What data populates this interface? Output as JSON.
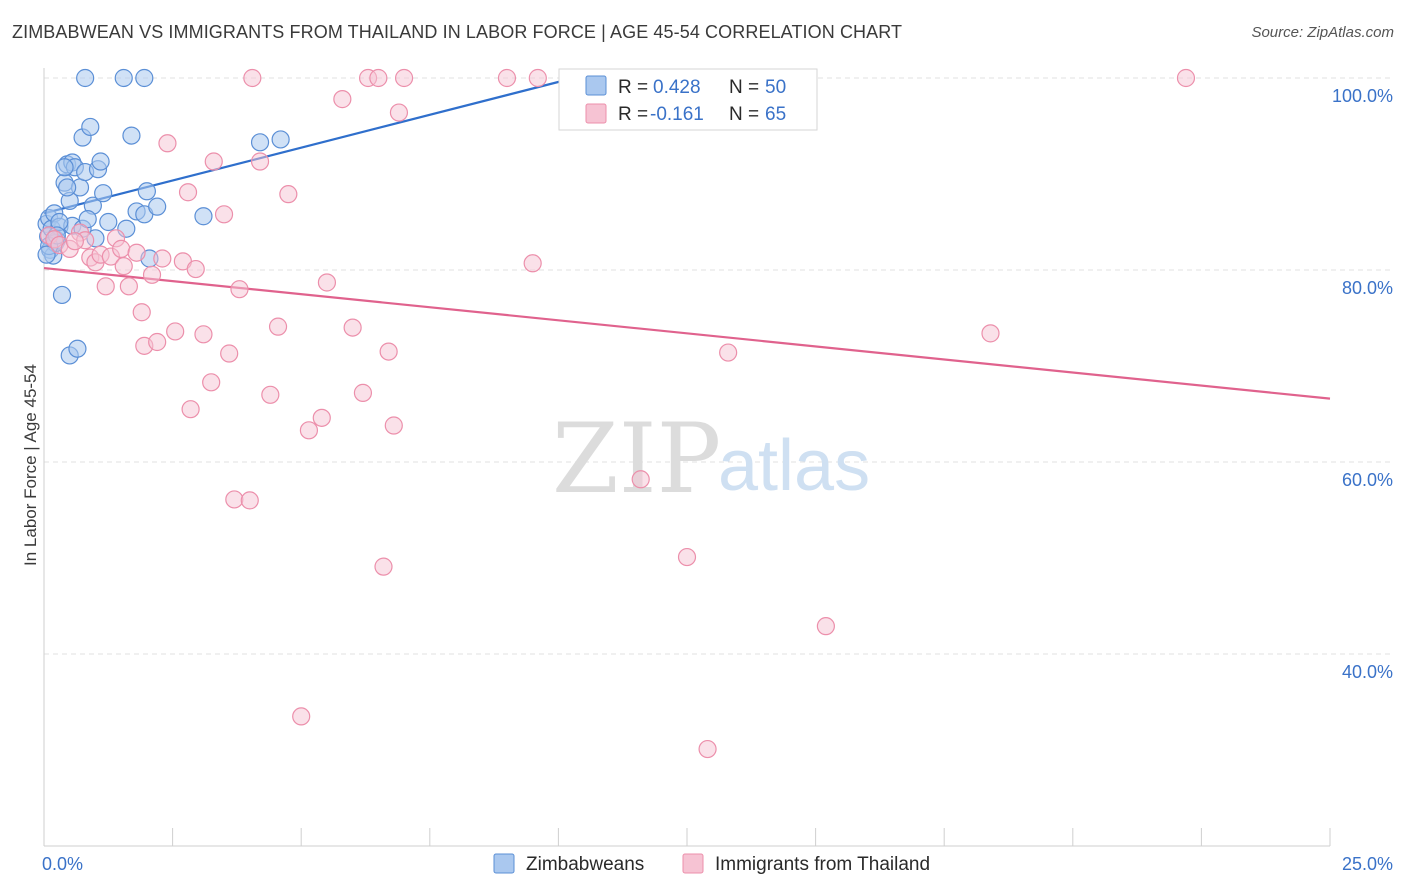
{
  "header": {
    "title": "ZIMBABWEAN VS IMMIGRANTS FROM THAILAND IN LABOR FORCE | AGE 45-54 CORRELATION CHART",
    "source": "Source: ZipAtlas.com"
  },
  "watermark": {
    "zip": "ZIP",
    "atlas": "atlas"
  },
  "colors": {
    "blue": "#5b8fd6",
    "blue_fill": "#aac8ef",
    "blue_line": "#2f6fcc",
    "pink": "#ec8fab",
    "pink_fill": "#f6c3d3",
    "pink_line": "#e0628d",
    "tick": "#3a72c8",
    "grid": "#e2e2e2"
  },
  "stats_box": {
    "rows": [
      {
        "r_label": "R = ",
        "r_value": "0.428",
        "n_label": "N = ",
        "n_value": "50"
      },
      {
        "r_label": "R = ",
        "r_value": "-0.161",
        "n_label": "N = ",
        "n_value": "65"
      }
    ]
  },
  "chart_data": {
    "type": "scatter",
    "title": "ZIMBABWEAN VS IMMIGRANTS FROM THAILAND IN LABOR FORCE | AGE 45-54 CORRELATION CHART",
    "xlabel": "",
    "ylabel": "In Labor Force | Age 45-54",
    "xlim": [
      0,
      25
    ],
    "ylim": [
      20,
      101
    ],
    "x_tick_labels": [
      "0.0%",
      "25.0%"
    ],
    "y_ticks": [
      40,
      60,
      80,
      100
    ],
    "y_tick_labels": [
      "40.0%",
      "60.0%",
      "80.0%",
      "100.0%"
    ],
    "grid": true,
    "legend": [
      "Zimbabweans",
      "Immigrants from Thailand"
    ],
    "series": [
      {
        "name": "Zimbabweans",
        "r": 0.428,
        "n": 50,
        "trend": {
          "x": [
            0.0,
            10.3
          ],
          "y": [
            85.9,
            100.0
          ]
        },
        "points": [
          [
            0.05,
            84.8
          ],
          [
            0.1,
            85.4
          ],
          [
            0.08,
            83.5
          ],
          [
            0.12,
            82.1
          ],
          [
            0.15,
            84.3
          ],
          [
            0.2,
            85.9
          ],
          [
            0.25,
            83.1
          ],
          [
            0.3,
            84.5
          ],
          [
            0.18,
            81.5
          ],
          [
            0.22,
            82.8
          ],
          [
            0.35,
            77.4
          ],
          [
            0.4,
            89.1
          ],
          [
            0.45,
            91.0
          ],
          [
            0.5,
            87.2
          ],
          [
            0.55,
            91.2
          ],
          [
            0.6,
            90.7
          ],
          [
            0.7,
            88.6
          ],
          [
            0.75,
            93.8
          ],
          [
            0.8,
            90.2
          ],
          [
            0.9,
            94.9
          ],
          [
            0.95,
            86.7
          ],
          [
            1.0,
            83.3
          ],
          [
            1.05,
            90.5
          ],
          [
            1.1,
            91.3
          ],
          [
            1.15,
            88.0
          ],
          [
            1.25,
            85.0
          ],
          [
            0.5,
            71.1
          ],
          [
            0.65,
            71.8
          ],
          [
            0.4,
            90.7
          ],
          [
            0.45,
            88.6
          ],
          [
            0.55,
            84.6
          ],
          [
            0.75,
            84.3
          ],
          [
            0.85,
            85.3
          ],
          [
            1.6,
            84.3
          ],
          [
            1.7,
            94.0
          ],
          [
            1.8,
            86.1
          ],
          [
            1.95,
            85.8
          ],
          [
            2.0,
            88.2
          ],
          [
            2.05,
            81.2
          ],
          [
            2.2,
            86.6
          ],
          [
            3.1,
            85.6
          ],
          [
            4.2,
            93.3
          ],
          [
            4.6,
            93.6
          ],
          [
            0.8,
            100.0
          ],
          [
            1.55,
            100.0
          ],
          [
            1.95,
            100.0
          ],
          [
            0.3,
            85.0
          ],
          [
            0.1,
            82.5
          ],
          [
            0.05,
            81.6
          ],
          [
            0.25,
            83.6
          ]
        ]
      },
      {
        "name": "Immigrants from Thailand",
        "r": -0.161,
        "n": 65,
        "trend": {
          "x": [
            0.0,
            25.0
          ],
          "y": [
            80.2,
            66.6
          ]
        },
        "points": [
          [
            0.1,
            83.6
          ],
          [
            0.2,
            83.2
          ],
          [
            0.3,
            82.6
          ],
          [
            0.5,
            82.2
          ],
          [
            0.7,
            83.9
          ],
          [
            0.8,
            83.1
          ],
          [
            0.9,
            81.3
          ],
          [
            1.0,
            80.8
          ],
          [
            1.1,
            81.6
          ],
          [
            1.2,
            78.3
          ],
          [
            1.3,
            81.4
          ],
          [
            1.4,
            83.3
          ],
          [
            1.5,
            82.2
          ],
          [
            1.55,
            80.4
          ],
          [
            1.65,
            78.3
          ],
          [
            1.8,
            81.8
          ],
          [
            1.9,
            75.6
          ],
          [
            1.95,
            72.1
          ],
          [
            2.1,
            79.5
          ],
          [
            2.2,
            72.5
          ],
          [
            2.3,
            81.2
          ],
          [
            2.4,
            93.2
          ],
          [
            2.55,
            73.6
          ],
          [
            2.7,
            80.9
          ],
          [
            2.8,
            88.1
          ],
          [
            2.85,
            65.5
          ],
          [
            2.95,
            80.1
          ],
          [
            3.1,
            73.3
          ],
          [
            3.25,
            68.3
          ],
          [
            3.3,
            91.3
          ],
          [
            3.5,
            85.8
          ],
          [
            3.6,
            71.3
          ],
          [
            3.7,
            56.1
          ],
          [
            3.8,
            78.0
          ],
          [
            4.0,
            56.0
          ],
          [
            4.05,
            100.0
          ],
          [
            4.2,
            91.3
          ],
          [
            4.4,
            67.0
          ],
          [
            4.55,
            74.1
          ],
          [
            4.75,
            87.9
          ],
          [
            5.0,
            33.5
          ],
          [
            5.15,
            63.3
          ],
          [
            5.4,
            64.6
          ],
          [
            5.5,
            78.7
          ],
          [
            5.8,
            97.8
          ],
          [
            6.0,
            74.0
          ],
          [
            6.2,
            67.2
          ],
          [
            6.3,
            100.0
          ],
          [
            6.5,
            100.0
          ],
          [
            6.6,
            49.1
          ],
          [
            6.7,
            71.5
          ],
          [
            6.8,
            63.8
          ],
          [
            6.9,
            96.4
          ],
          [
            7.0,
            100.0
          ],
          [
            9.0,
            100.0
          ],
          [
            9.5,
            80.7
          ],
          [
            9.6,
            100.0
          ],
          [
            11.6,
            58.2
          ],
          [
            12.5,
            50.1
          ],
          [
            12.9,
            30.1
          ],
          [
            13.3,
            71.4
          ],
          [
            15.2,
            42.9
          ],
          [
            18.4,
            73.4
          ],
          [
            22.2,
            100.0
          ],
          [
            0.6,
            83.0
          ]
        ]
      }
    ]
  }
}
